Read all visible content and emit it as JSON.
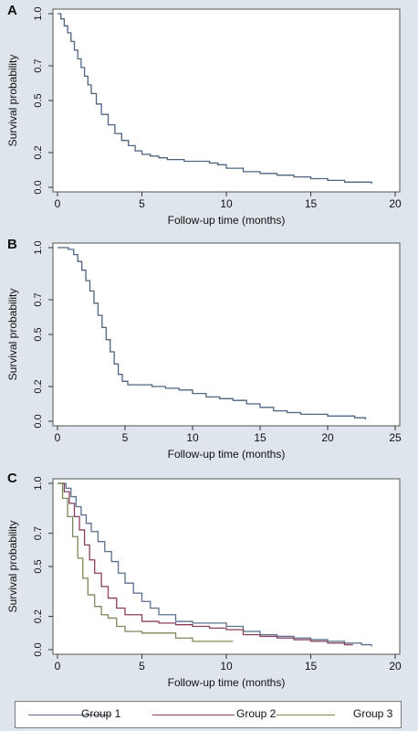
{
  "panels": [
    {
      "letter": "A"
    },
    {
      "letter": "B"
    },
    {
      "letter": "C"
    }
  ],
  "colors": {
    "background": "#dfe5ec",
    "plot_area": "#ffffff",
    "group1": "#5a6f8c",
    "group2": "#8a3f5e",
    "group3": "#7a8a5a",
    "overall": "#4f6480"
  },
  "legend": {
    "items": [
      {
        "label": "Group 1",
        "color": "#5a6f8c"
      },
      {
        "label": "Group 2",
        "color": "#8a3f5e"
      },
      {
        "label": "Group 3",
        "color": "#7a8a5a"
      }
    ]
  },
  "chart_data": [
    {
      "type": "line",
      "panel": "A",
      "xlabel": "Follow-up time (months)",
      "ylabel": "Survival probability",
      "xlim": [
        0,
        20
      ],
      "ylim": [
        0,
        1
      ],
      "xticks": [
        0,
        5,
        10,
        15,
        20
      ],
      "yticks": [
        0.0,
        0.2,
        0.5,
        0.7,
        1.0
      ],
      "ytick_labels": [
        "0.0",
        "0.2",
        "0.5",
        "0.7",
        "1.0"
      ],
      "grid": false,
      "series": [
        {
          "color": "#4f6480",
          "step": true,
          "x": [
            0,
            0.2,
            0.4,
            0.6,
            0.8,
            1.0,
            1.2,
            1.4,
            1.6,
            1.8,
            2.0,
            2.3,
            2.6,
            3.0,
            3.4,
            3.8,
            4.2,
            4.6,
            5.0,
            5.5,
            6.0,
            6.5,
            7.0,
            7.5,
            8.0,
            8.5,
            9.0,
            9.5,
            10.0,
            11.0,
            12.0,
            13.0,
            14.0,
            15.0,
            16.0,
            17.0,
            18.0,
            18.6
          ],
          "y": [
            1.0,
            0.97,
            0.93,
            0.89,
            0.84,
            0.79,
            0.74,
            0.69,
            0.64,
            0.59,
            0.54,
            0.48,
            0.42,
            0.36,
            0.31,
            0.27,
            0.24,
            0.21,
            0.19,
            0.18,
            0.17,
            0.16,
            0.16,
            0.15,
            0.15,
            0.15,
            0.14,
            0.13,
            0.11,
            0.09,
            0.08,
            0.07,
            0.06,
            0.05,
            0.04,
            0.03,
            0.03,
            0.02
          ]
        }
      ]
    },
    {
      "type": "line",
      "panel": "B",
      "xlabel": "Follow-up time (months)",
      "ylabel": "Survival probability",
      "xlim": [
        0,
        25
      ],
      "ylim": [
        0,
        1
      ],
      "xticks": [
        0,
        5,
        10,
        15,
        20,
        25
      ],
      "yticks": [
        0.0,
        0.2,
        0.5,
        0.7,
        1.0
      ],
      "ytick_labels": [
        "0.0",
        "0.2",
        "0.5",
        "0.7",
        "1.0"
      ],
      "grid": false,
      "series": [
        {
          "color": "#4f6480",
          "step": true,
          "x": [
            0,
            0.8,
            1.2,
            1.5,
            1.8,
            2.1,
            2.4,
            2.7,
            3.0,
            3.3,
            3.6,
            3.9,
            4.2,
            4.5,
            4.8,
            5.2,
            6.0,
            7.0,
            8.0,
            9.0,
            10.0,
            11.0,
            12.0,
            13.0,
            14.0,
            15.0,
            16.0,
            17.0,
            18.0,
            20.0,
            22.0,
            22.8
          ],
          "y": [
            1.0,
            0.99,
            0.96,
            0.92,
            0.87,
            0.81,
            0.75,
            0.68,
            0.61,
            0.54,
            0.47,
            0.4,
            0.33,
            0.27,
            0.23,
            0.21,
            0.21,
            0.2,
            0.19,
            0.18,
            0.16,
            0.14,
            0.13,
            0.12,
            0.1,
            0.08,
            0.06,
            0.05,
            0.04,
            0.03,
            0.02,
            0.01
          ]
        }
      ]
    },
    {
      "type": "line",
      "panel": "C",
      "xlabel": "Follow-up time (months)",
      "ylabel": "Survival probability",
      "xlim": [
        0,
        20
      ],
      "ylim": [
        0,
        1
      ],
      "xticks": [
        0,
        5,
        10,
        15,
        20
      ],
      "yticks": [
        0.0,
        0.2,
        0.5,
        0.7,
        1.0
      ],
      "ytick_labels": [
        "0.0",
        "0.2",
        "0.5",
        "0.7",
        "1.0"
      ],
      "grid": false,
      "series": [
        {
          "name": "Group 1",
          "color": "#5a6f8c",
          "step": true,
          "x": [
            0,
            0.5,
            0.8,
            1.1,
            1.4,
            1.7,
            2.0,
            2.4,
            2.8,
            3.2,
            3.6,
            4.0,
            4.5,
            5.0,
            5.5,
            6.0,
            7.0,
            8.0,
            9.0,
            10.0,
            11.0,
            12.0,
            13.0,
            14.0,
            15.0,
            16.0,
            17.0,
            18.0,
            18.6
          ],
          "y": [
            1.0,
            0.97,
            0.92,
            0.86,
            0.81,
            0.76,
            0.71,
            0.65,
            0.59,
            0.53,
            0.46,
            0.4,
            0.34,
            0.29,
            0.25,
            0.21,
            0.17,
            0.16,
            0.16,
            0.14,
            0.11,
            0.09,
            0.08,
            0.07,
            0.06,
            0.05,
            0.04,
            0.03,
            0.02
          ]
        },
        {
          "name": "Group 2",
          "color": "#8a3f5e",
          "step": true,
          "x": [
            0,
            0.4,
            0.7,
            1.0,
            1.3,
            1.6,
            1.9,
            2.2,
            2.6,
            3.0,
            3.5,
            4.0,
            5.0,
            6.0,
            7.0,
            8.0,
            9.0,
            10.0,
            11.0,
            12.0,
            13.0,
            14.0,
            15.0,
            16.0,
            17.0,
            17.5
          ],
          "y": [
            1.0,
            0.95,
            0.88,
            0.8,
            0.72,
            0.63,
            0.54,
            0.46,
            0.38,
            0.31,
            0.25,
            0.21,
            0.17,
            0.16,
            0.15,
            0.14,
            0.13,
            0.12,
            0.09,
            0.08,
            0.07,
            0.06,
            0.05,
            0.04,
            0.03,
            0.03
          ]
        },
        {
          "name": "Group 3",
          "color": "#7a8a5a",
          "step": true,
          "x": [
            0,
            0.3,
            0.6,
            0.9,
            1.2,
            1.5,
            1.8,
            2.2,
            2.6,
            3.0,
            3.5,
            4.0,
            5.0,
            6.0,
            7.0,
            8.0,
            9.0,
            10.0,
            10.4
          ],
          "y": [
            1.0,
            0.91,
            0.8,
            0.68,
            0.55,
            0.43,
            0.33,
            0.26,
            0.21,
            0.19,
            0.14,
            0.11,
            0.1,
            0.1,
            0.07,
            0.05,
            0.05,
            0.05,
            0.05
          ]
        }
      ]
    }
  ]
}
